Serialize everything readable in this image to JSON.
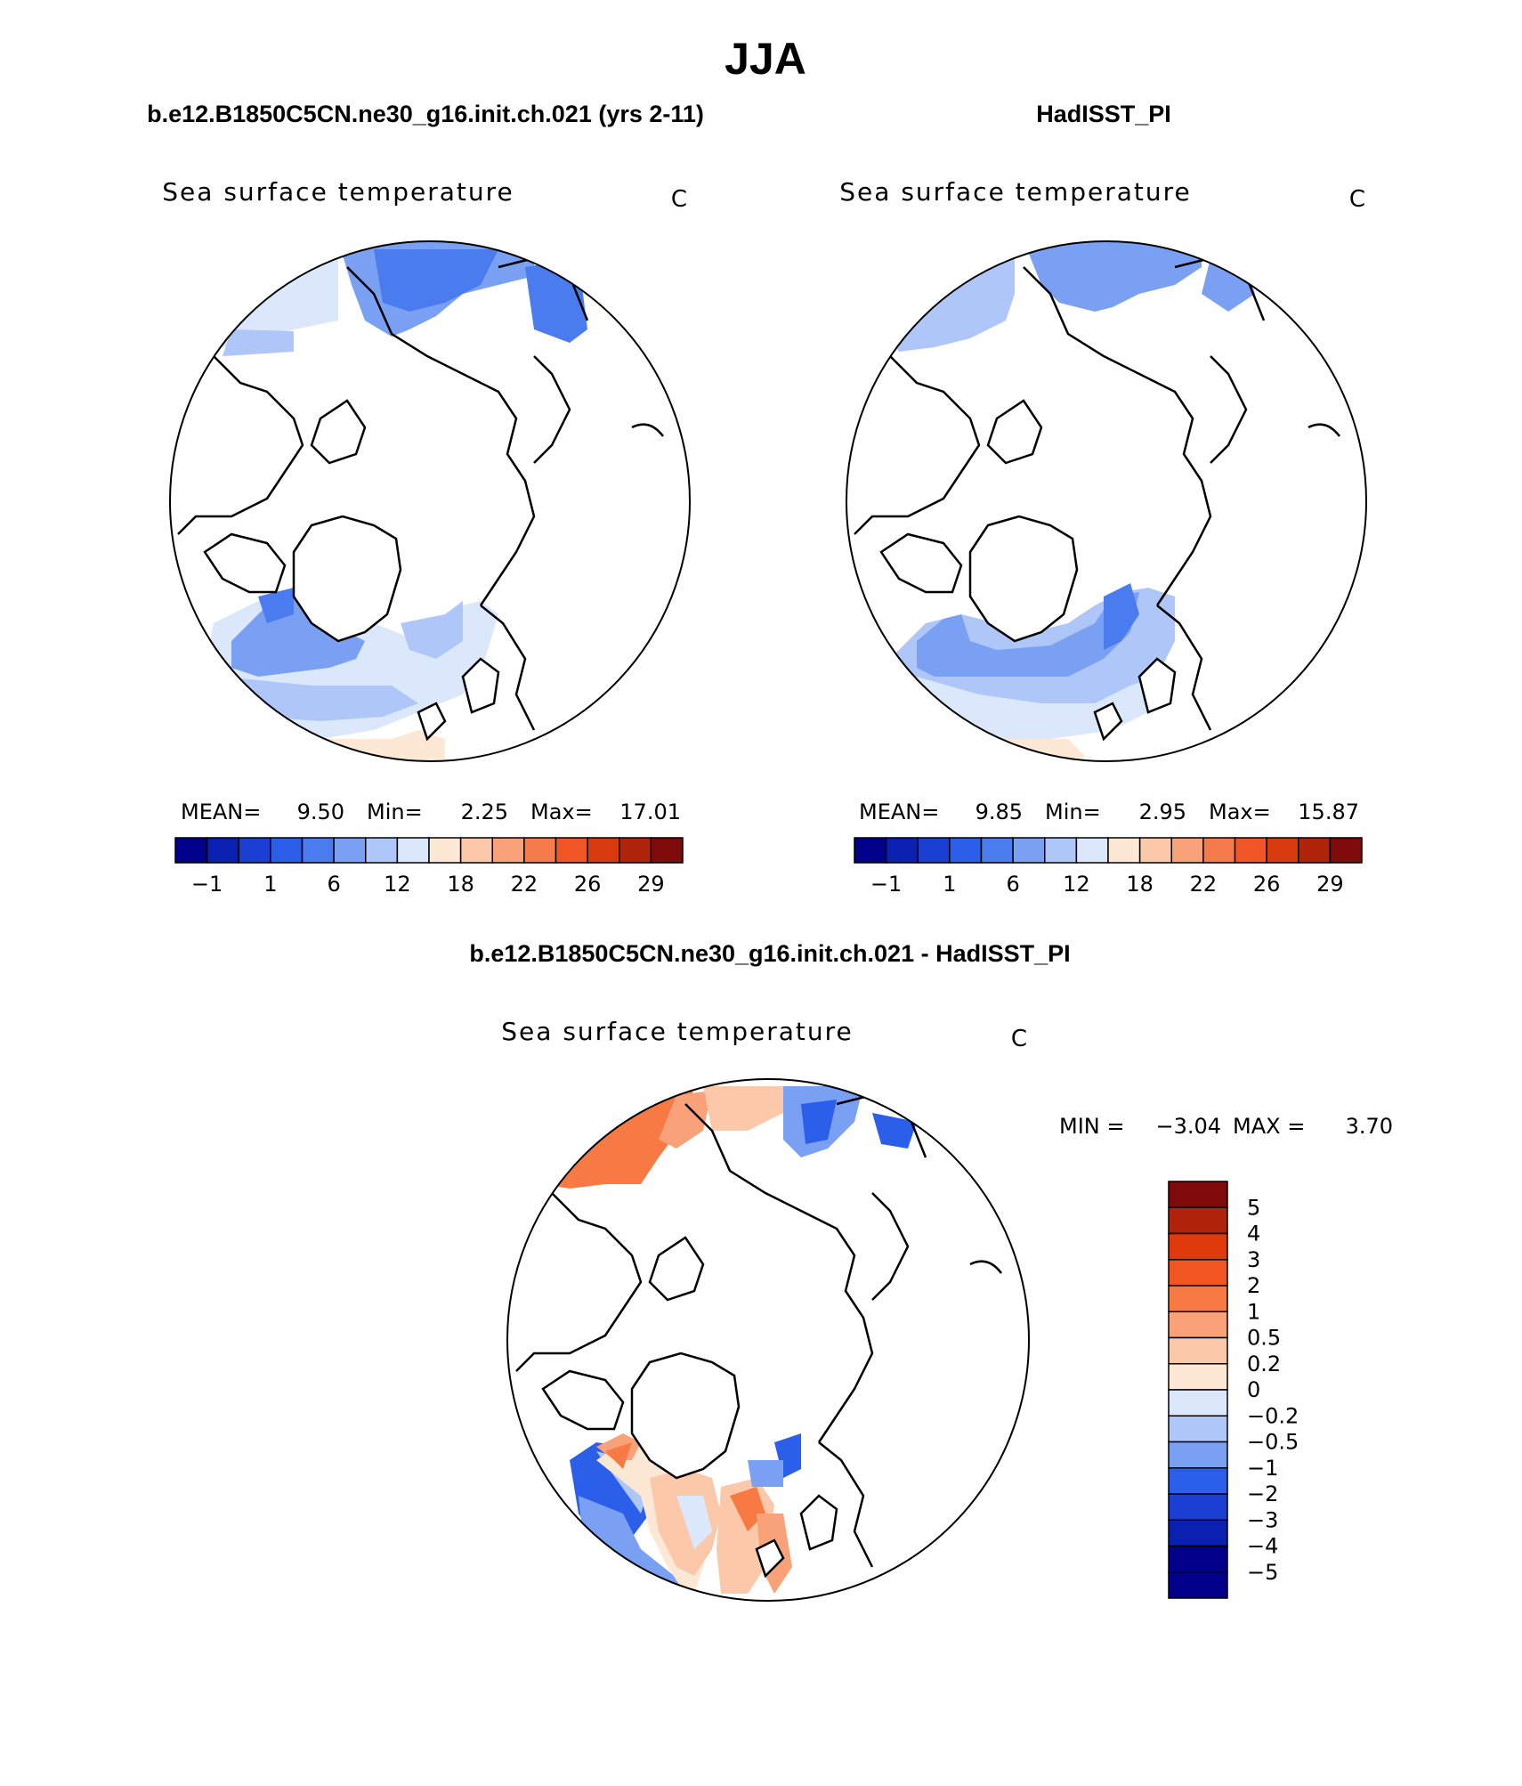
{
  "figure": {
    "title": "JJA",
    "panels": [
      {
        "id": "model",
        "case_title": "b.e12.B1850C5CN.ne30_g16.init.ch.021 (yrs 2-11)",
        "variable": "Sea surface temperature",
        "units": "C",
        "stats": {
          "mean_label": "MEAN=",
          "mean": "9.50",
          "min_label": "Min=",
          "min": "2.25",
          "max_label": "Max=",
          "max": "17.01"
        }
      },
      {
        "id": "obs",
        "case_title": "HadISST_PI",
        "variable": "Sea surface temperature",
        "units": "C",
        "stats": {
          "mean_label": "MEAN=",
          "mean": "9.85",
          "min_label": "Min=",
          "min": "2.95",
          "max_label": "Max=",
          "max": "15.87"
        }
      },
      {
        "id": "diff",
        "case_title": "b.e12.B1850C5CN.ne30_g16.init.ch.021 - HadISST_PI",
        "variable": "Sea surface temperature",
        "units": "C",
        "minmax_text": {
          "min_label": "MIN =",
          "min": "−3.04",
          "max_label": "MAX =",
          "max": "3.70"
        }
      }
    ],
    "sst_colorbar": {
      "labels": [
        "−1",
        "1",
        "6",
        "12",
        "18",
        "22",
        "26",
        "29"
      ],
      "colors": [
        "#00008b",
        "#0a20b0",
        "#1a3fd2",
        "#2b5fea",
        "#4a7cf0",
        "#7aa0f4",
        "#aec6f8",
        "#dbe8fb",
        "#fde8d6",
        "#fcc8aa",
        "#f9a27a",
        "#f67b4c",
        "#f05526",
        "#d83a10",
        "#b0240c",
        "#7e0a0a"
      ]
    },
    "diff_colorbar": {
      "labels": [
        "5",
        "4",
        "3",
        "2",
        "1",
        "0.5",
        "0.2",
        "0",
        "−0.2",
        "−0.5",
        "−1",
        "−2",
        "−3",
        "−4",
        "−5"
      ],
      "colors": [
        "#7e0a0a",
        "#b0240c",
        "#e03a0c",
        "#f15520",
        "#f77a44",
        "#f9a27a",
        "#fbc8aa",
        "#fde8d6",
        "#dbe8fb",
        "#aec6f8",
        "#7aa0f4",
        "#2b5fea",
        "#1a3fd2",
        "#0a20b0",
        "#00008b",
        "#00008b"
      ]
    }
  }
}
